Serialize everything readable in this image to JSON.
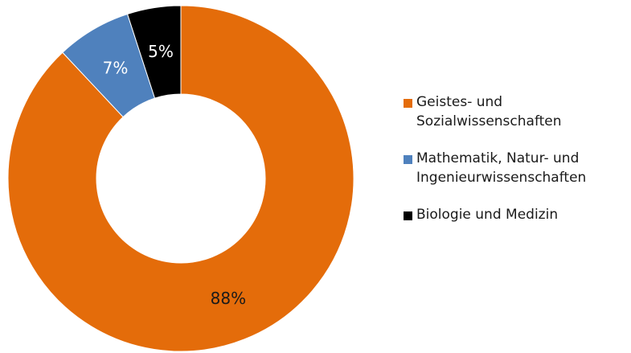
{
  "chart_data": {
    "type": "pie",
    "variant": "donut",
    "legend_position": "right",
    "slices": [
      {
        "name": "Geistes- und\nSozialwissenschaften",
        "value": 88,
        "label": "88%",
        "color": "#E46C0A",
        "label_color": "#1a1a1a"
      },
      {
        "name": "Mathematik, Natur- und\nIngenieurwissenschaften",
        "value": 7,
        "label": "7%",
        "color": "#4F81BD",
        "label_color": "#ffffff"
      },
      {
        "name": "Biologie und Medizin",
        "value": 5,
        "label": "5%",
        "color": "#000000",
        "label_color": "#ffffff"
      }
    ]
  }
}
